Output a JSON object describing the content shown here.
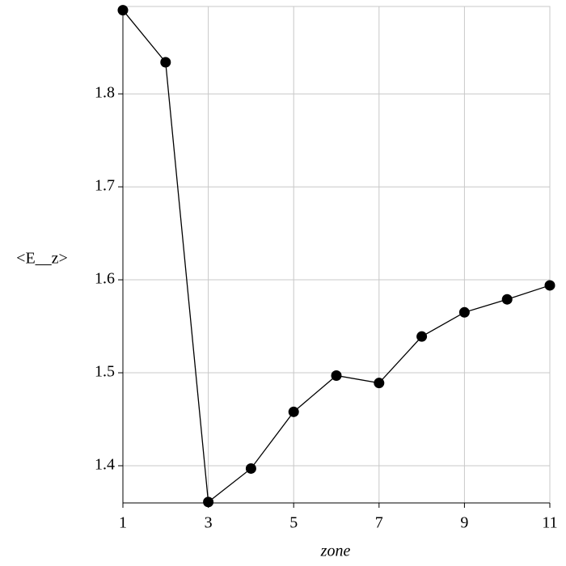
{
  "chart_data": {
    "type": "line",
    "x_label": "zone",
    "y_label": "<E__z>",
    "x": [
      1,
      2,
      3,
      4,
      5,
      6,
      7,
      8,
      9,
      10,
      11
    ],
    "series": [
      {
        "color": "#000000",
        "values": [
          1.89,
          1.834,
          1.361,
          1.397,
          1.458,
          1.497,
          1.489,
          1.539,
          1.565,
          1.579,
          1.594
        ]
      }
    ],
    "xlim": [
      1,
      11
    ],
    "xticks": [
      1,
      3,
      5,
      7,
      9,
      11
    ],
    "ylim": [
      1.36,
      1.894
    ],
    "yticks": [
      1.4,
      1.5,
      1.6,
      1.7,
      1.8
    ],
    "grid": true
  }
}
